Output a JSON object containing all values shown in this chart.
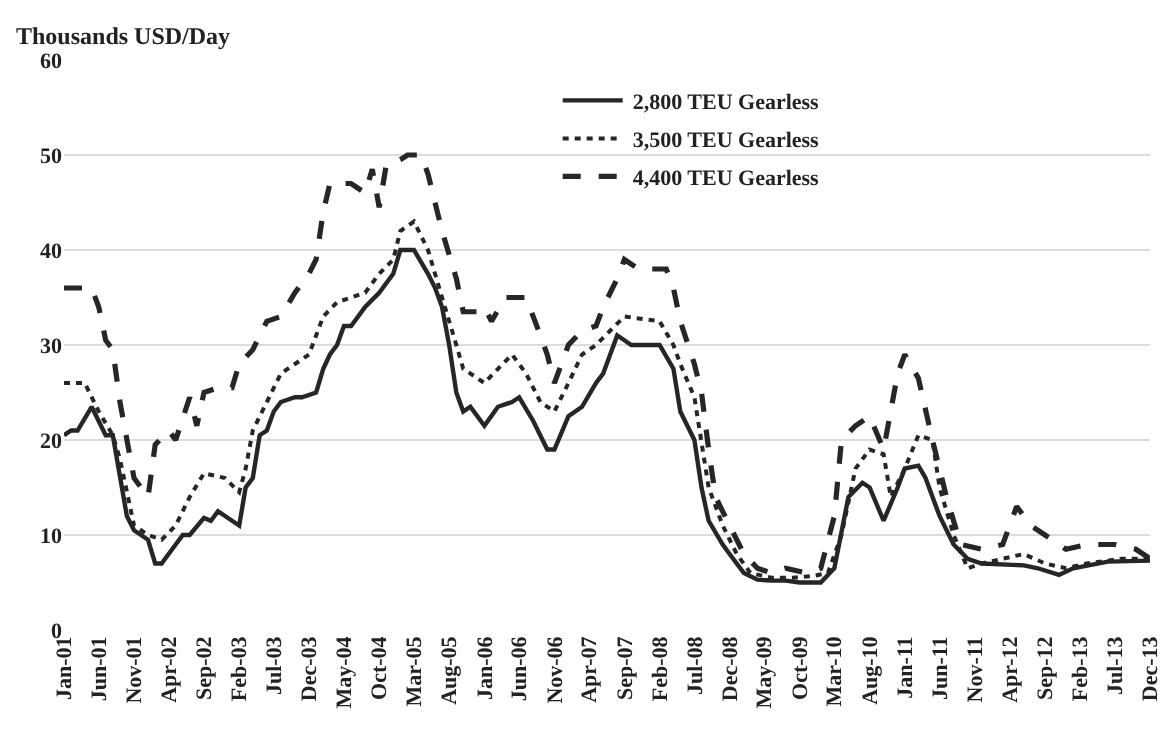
{
  "chart_data": {
    "type": "line",
    "ylabel": "Thousands USD/Day",
    "xlim": [
      "2001-01",
      "2013-12"
    ],
    "ylim": [
      0,
      60
    ],
    "yticks": [
      0,
      10,
      20,
      30,
      40,
      50,
      60
    ],
    "xticks": [
      {
        "value": "2001-01",
        "label": "Jan-01"
      },
      {
        "value": "2001-06",
        "label": "Jun-01"
      },
      {
        "value": "2001-11",
        "label": "Nov-01"
      },
      {
        "value": "2002-04",
        "label": "Apr-02"
      },
      {
        "value": "2002-09",
        "label": "Sep-02"
      },
      {
        "value": "2003-02",
        "label": "Feb-03"
      },
      {
        "value": "2003-07",
        "label": "Jul-03"
      },
      {
        "value": "2003-12",
        "label": "Dec-03"
      },
      {
        "value": "2004-05",
        "label": "May-04"
      },
      {
        "value": "2004-10",
        "label": "Oct-04"
      },
      {
        "value": "2005-03",
        "label": "Mar-05"
      },
      {
        "value": "2005-08",
        "label": "Aug-05"
      },
      {
        "value": "2006-01",
        "label": "Jan-06"
      },
      {
        "value": "2006-06",
        "label": "Jun-06"
      },
      {
        "value": "2006-11",
        "label": "Nov-06"
      },
      {
        "value": "2007-04",
        "label": "Apr-07"
      },
      {
        "value": "2007-09",
        "label": "Sep-07"
      },
      {
        "value": "2008-02",
        "label": "Feb-08"
      },
      {
        "value": "2008-07",
        "label": "Jul-08"
      },
      {
        "value": "2008-12",
        "label": "Dec-08"
      },
      {
        "value": "2009-05",
        "label": "May-09"
      },
      {
        "value": "2009-10",
        "label": "Oct-09"
      },
      {
        "value": "2010-03",
        "label": "Mar-10"
      },
      {
        "value": "2010-08",
        "label": "Aug-10"
      },
      {
        "value": "2011-01",
        "label": "Jan-11"
      },
      {
        "value": "2011-06",
        "label": "Jun-11"
      },
      {
        "value": "2011-11",
        "label": "Nov-11"
      },
      {
        "value": "2012-04",
        "label": "Apr-12"
      },
      {
        "value": "2012-09",
        "label": "Sep-12"
      },
      {
        "value": "2013-02",
        "label": "Feb-13"
      },
      {
        "value": "2013-07",
        "label": "Jul-13"
      },
      {
        "value": "2013-12",
        "label": "Dec-13"
      }
    ],
    "grid": "y",
    "legend": "top",
    "marker": "none",
    "series": [
      {
        "name": "2,800 TEU Gearless",
        "color": "#262626",
        "line_style": "solid",
        "x": [
          "2001-01",
          "2001-02",
          "2001-03",
          "2001-05",
          "2001-07",
          "2001-08",
          "2001-10",
          "2001-11",
          "2002-01",
          "2002-02",
          "2002-03",
          "2002-05",
          "2002-06",
          "2002-07",
          "2002-09",
          "2002-10",
          "2002-11",
          "2003-01",
          "2003-02",
          "2003-03",
          "2003-04",
          "2003-05",
          "2003-06",
          "2003-07",
          "2003-08",
          "2003-10",
          "2003-11",
          "2004-01",
          "2004-02",
          "2004-03",
          "2004-04",
          "2004-05",
          "2004-06",
          "2004-08",
          "2004-10",
          "2004-12",
          "2005-01",
          "2005-03",
          "2005-05",
          "2005-06",
          "2005-07",
          "2005-08",
          "2005-09",
          "2005-10",
          "2005-11",
          "2006-01",
          "2006-03",
          "2006-05",
          "2006-06",
          "2006-08",
          "2006-10",
          "2006-11",
          "2007-01",
          "2007-03",
          "2007-05",
          "2007-06",
          "2007-08",
          "2007-09",
          "2007-10",
          "2008-02",
          "2008-04",
          "2008-05",
          "2008-07",
          "2008-08",
          "2008-09",
          "2008-11",
          "2008-12",
          "2009-02",
          "2009-04",
          "2009-06",
          "2009-08",
          "2009-10",
          "2010-01",
          "2010-03",
          "2010-05",
          "2010-07",
          "2010-08",
          "2010-10",
          "2010-12",
          "2011-01",
          "2011-03",
          "2011-04",
          "2011-06",
          "2011-08",
          "2011-10",
          "2011-12",
          "2012-06",
          "2012-08",
          "2012-11",
          "2013-01",
          "2013-06",
          "2013-12"
        ],
        "values": [
          20.5,
          21,
          21,
          23.5,
          20.5,
          20.5,
          12,
          10.5,
          9.5,
          7,
          7,
          9,
          10,
          10,
          11.8,
          11.5,
          12.5,
          11.5,
          11,
          15,
          16,
          20.5,
          21,
          23,
          24,
          24.5,
          24.5,
          25,
          27.5,
          29,
          30,
          32,
          32,
          34,
          35.5,
          37.5,
          40,
          40,
          37.5,
          36,
          34,
          30,
          25,
          23,
          23.5,
          21.5,
          23.5,
          24,
          24.5,
          22,
          19,
          19,
          22.5,
          23.5,
          26,
          27,
          31,
          30.5,
          30,
          30,
          27.5,
          23,
          20,
          15,
          11.5,
          9,
          8,
          6,
          5.3,
          5.2,
          5.2,
          5,
          5,
          6.5,
          14,
          15.5,
          15,
          11.5,
          15,
          17,
          17.3,
          16,
          12,
          9,
          7.5,
          7,
          6.8,
          6.5,
          5.8,
          6.5,
          7.2,
          7.3
        ]
      },
      {
        "name": "3,500 TEU Gearless",
        "color": "#262626",
        "line_style": "dotted",
        "x": [
          "2001-01",
          "2001-04",
          "2001-06",
          "2001-08",
          "2001-09",
          "2001-11",
          "2002-01",
          "2002-03",
          "2002-05",
          "2002-07",
          "2002-09",
          "2002-12",
          "2003-02",
          "2003-03",
          "2003-04",
          "2003-06",
          "2003-08",
          "2003-10",
          "2003-12",
          "2004-02",
          "2004-04",
          "2004-06",
          "2004-08",
          "2004-10",
          "2004-12",
          "2005-01",
          "2005-03",
          "2005-05",
          "2005-07",
          "2005-09",
          "2005-10",
          "2006-01",
          "2006-03",
          "2006-05",
          "2006-07",
          "2006-09",
          "2006-11",
          "2007-01",
          "2007-03",
          "2007-05",
          "2007-07",
          "2007-09",
          "2008-02",
          "2008-04",
          "2008-05",
          "2008-07",
          "2008-09",
          "2008-11",
          "2009-01",
          "2009-03",
          "2009-06",
          "2009-09",
          "2009-12",
          "2010-02",
          "2010-04",
          "2010-06",
          "2010-08",
          "2010-10",
          "2010-11",
          "2011-01",
          "2011-03",
          "2011-05",
          "2011-06",
          "2011-08",
          "2011-10",
          "2011-12",
          "2012-03",
          "2012-06",
          "2012-09",
          "2012-12",
          "2013-03",
          "2013-08",
          "2013-12"
        ],
        "values": [
          26,
          26,
          23,
          20.5,
          18,
          11,
          10,
          9.5,
          11,
          14,
          16.5,
          16,
          14.5,
          17,
          21,
          24,
          27,
          28,
          29,
          33,
          34.5,
          35,
          35.5,
          37.5,
          39,
          42,
          43,
          40,
          35,
          30,
          27.5,
          26,
          27.5,
          29,
          27,
          24,
          23,
          26,
          29,
          30,
          31.5,
          33,
          32.5,
          30,
          28,
          24.5,
          15,
          11,
          8,
          6,
          5.5,
          5.5,
          5.7,
          6,
          10,
          17,
          19,
          18.5,
          14,
          17,
          20.5,
          20,
          15,
          10,
          6.5,
          7,
          7.5,
          8,
          7,
          6.5,
          7,
          7.5,
          7.5
        ]
      },
      {
        "name": "4,400 TEU Gearless",
        "color": "#262626",
        "line_style": "dashed",
        "x": [
          "2001-01",
          "2001-05",
          "2001-06",
          "2001-07",
          "2001-08",
          "2001-09",
          "2001-11",
          "2002-01",
          "2002-02",
          "2002-04",
          "2002-05",
          "2002-07",
          "2002-08",
          "2002-09",
          "2002-11",
          "2003-01",
          "2003-02",
          "2003-04",
          "2003-06",
          "2003-08",
          "2003-10",
          "2003-12",
          "2004-01",
          "2004-02",
          "2004-03",
          "2004-06",
          "2004-08",
          "2004-09",
          "2004-10",
          "2004-11",
          "2005-01",
          "2005-02",
          "2005-04",
          "2005-05",
          "2005-07",
          "2005-09",
          "2005-10",
          "2005-12",
          "2006-01",
          "2006-02",
          "2006-04",
          "2006-07",
          "2006-09",
          "2006-10",
          "2006-11",
          "2007-01",
          "2007-03",
          "2007-05",
          "2007-06",
          "2007-08",
          "2007-09",
          "2007-11",
          "2008-03",
          "2008-04",
          "2008-05",
          "2008-07",
          "2008-08",
          "2008-09",
          "2008-10",
          "2008-12",
          "2009-02",
          "2009-04",
          "2009-06",
          "2009-08",
          "2009-11",
          "2010-01",
          "2010-03",
          "2010-04",
          "2010-06",
          "2010-08",
          "2010-10",
          "2010-12",
          "2011-01",
          "2011-03",
          "2011-05",
          "2011-07",
          "2011-09",
          "2011-12",
          "2012-03",
          "2012-05",
          "2012-07",
          "2012-09",
          "2012-12",
          "2013-03",
          "2013-07",
          "2013-10",
          "2013-12"
        ],
        "values": [
          36,
          36,
          34,
          30.5,
          29.5,
          24,
          16,
          14,
          19.5,
          21,
          20,
          24.5,
          21.5,
          25,
          25.5,
          25.5,
          28,
          29.5,
          32.5,
          33,
          35.5,
          37.5,
          39,
          44,
          47,
          47,
          46,
          48.5,
          44.5,
          49,
          49.5,
          50,
          50,
          48,
          42,
          37,
          33.5,
          33.5,
          34,
          32.5,
          35,
          35,
          31,
          29,
          26,
          30,
          31.5,
          32,
          34,
          37,
          39,
          38,
          38,
          36,
          32.5,
          28,
          25,
          19,
          14,
          11,
          8,
          6.5,
          6,
          6.5,
          6,
          6.5,
          12,
          20,
          21.5,
          22.5,
          19,
          27,
          29,
          26.5,
          20,
          14,
          9,
          8.5,
          9,
          13,
          11,
          10,
          8.5,
          9,
          9,
          8.5,
          7.5
        ]
      }
    ]
  }
}
